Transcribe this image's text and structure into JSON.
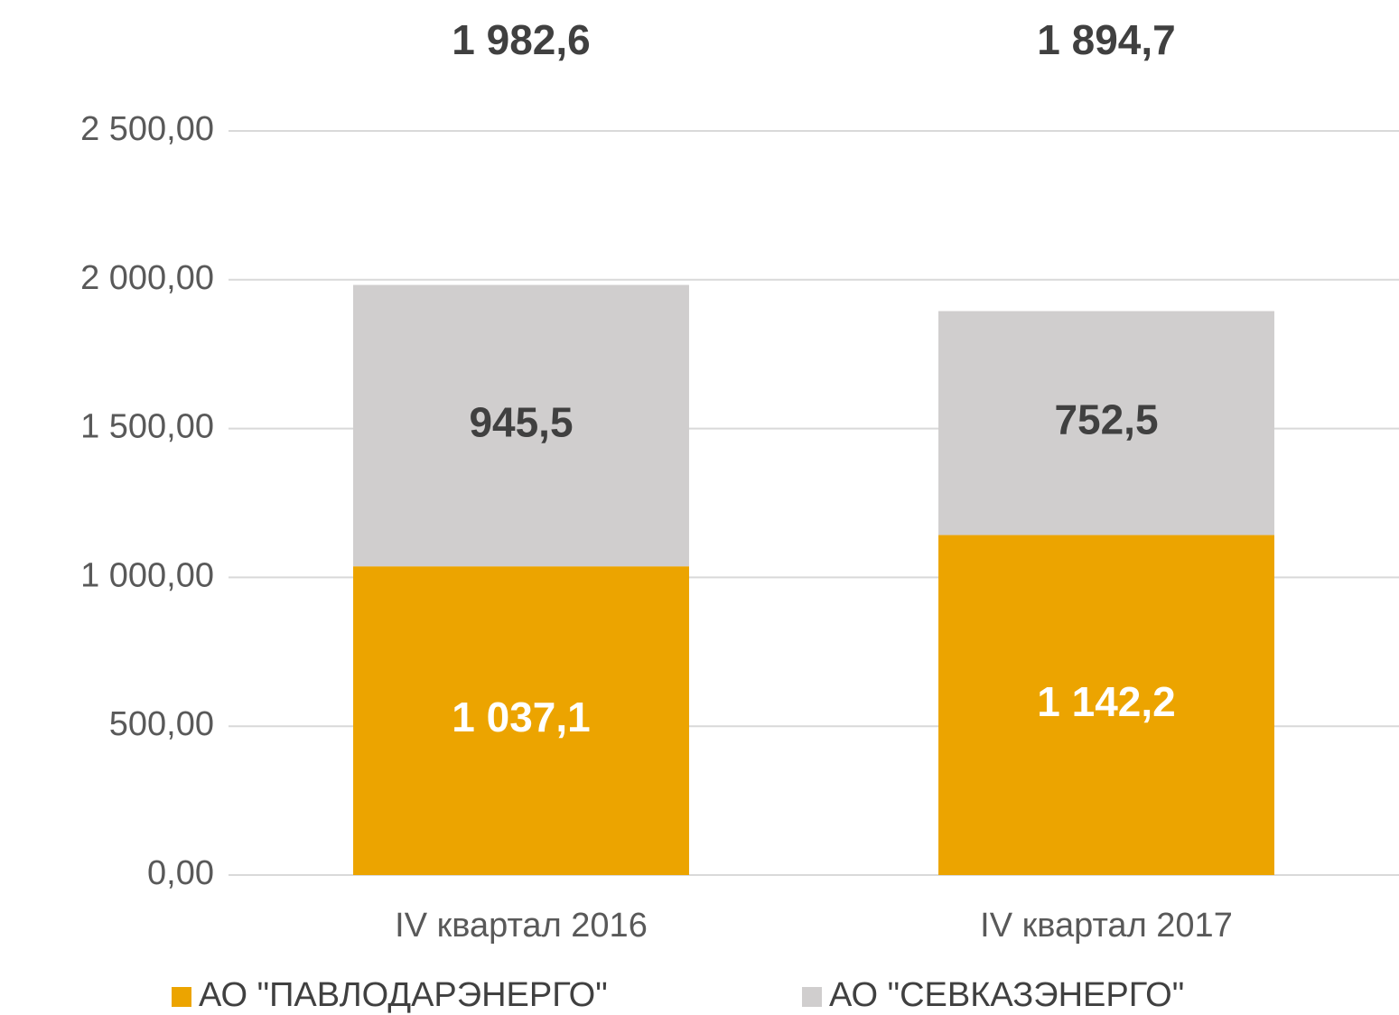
{
  "chart_data": {
    "type": "stacked_bar",
    "categories": [
      "IV квартал 2016",
      "IV квартал 2017"
    ],
    "series": [
      {
        "name": "АО \"ПАВЛОДАРЭНЕРГО\"",
        "color": "#eca400",
        "label_color": "#ffffff",
        "values": [
          1037.1,
          1142.2
        ],
        "value_labels": [
          "1 037,1",
          "1 142,2"
        ]
      },
      {
        "name": "АО \"СЕВКАЗЭНЕРГО\"",
        "color": "#d0cece",
        "label_color": "#404040",
        "values": [
          945.5,
          752.5
        ],
        "value_labels": [
          "945,5",
          "752,5"
        ]
      }
    ],
    "totals": {
      "values": [
        1982.6,
        1894.7
      ],
      "value_labels": [
        "1 982,6",
        "1 894,7"
      ]
    },
    "ylim": [
      0,
      2500
    ],
    "yticks": [
      {
        "value": 0,
        "label": "0,00"
      },
      {
        "value": 500,
        "label": "500,00"
      },
      {
        "value": 1000,
        "label": "1 000,00"
      },
      {
        "value": 1500,
        "label": "1 500,00"
      },
      {
        "value": 2000,
        "label": "2 000,00"
      },
      {
        "value": 2500,
        "label": "2 500,00"
      }
    ],
    "grid": true,
    "legend": "bottom"
  }
}
